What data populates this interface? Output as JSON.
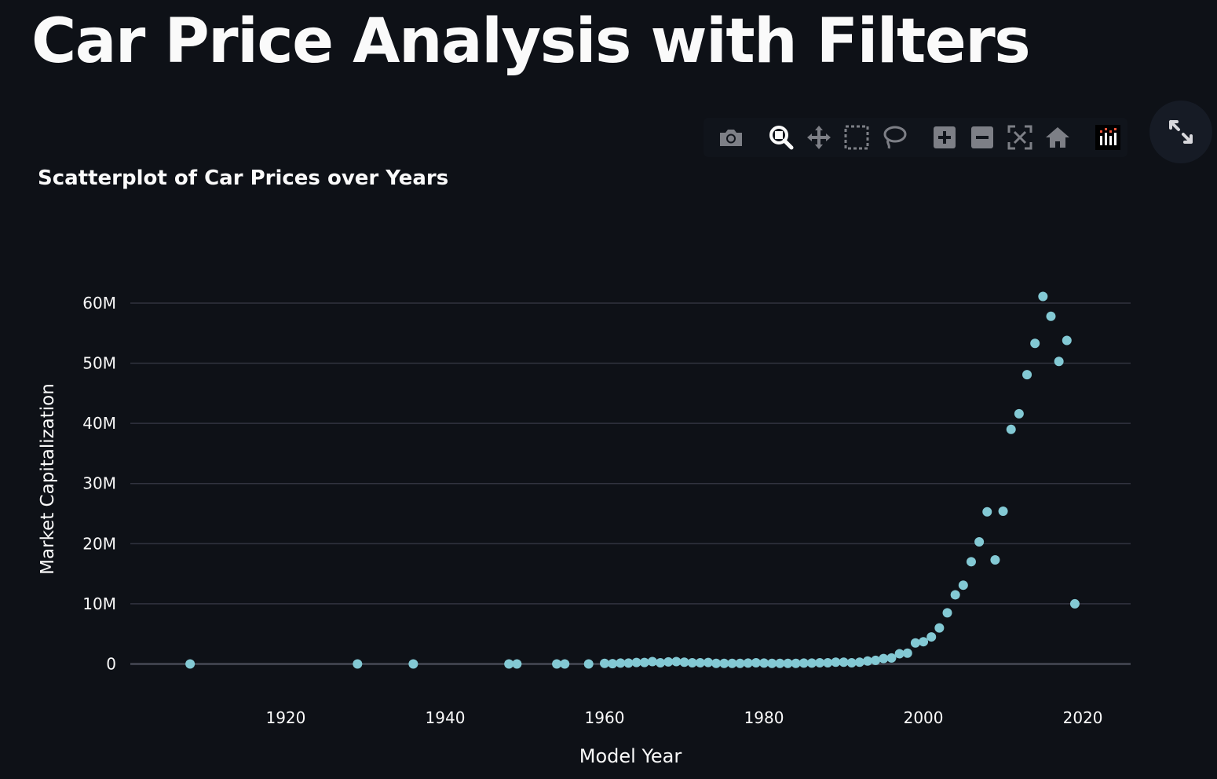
{
  "page": {
    "title": "Car Price Analysis with Filters"
  },
  "modebar": {
    "buttons": [
      {
        "name": "camera-icon",
        "label": "Download plot as a png"
      },
      {
        "name": "zoom-icon",
        "label": "Zoom"
      },
      {
        "name": "pan-icon",
        "label": "Pan"
      },
      {
        "name": "box-select-icon",
        "label": "Box Select"
      },
      {
        "name": "lasso-select-icon",
        "label": "Lasso Select"
      },
      {
        "name": "zoom-in-icon",
        "label": "Zoom in"
      },
      {
        "name": "zoom-out-icon",
        "label": "Zoom out"
      },
      {
        "name": "autoscale-icon",
        "label": "Autoscale"
      },
      {
        "name": "reset-axes-icon",
        "label": "Reset axes"
      },
      {
        "name": "plotly-logo-icon",
        "label": "Produced with Plotly"
      }
    ],
    "active": "zoom-icon"
  },
  "fullscreen": {
    "icon": "expand-icon"
  },
  "colors": {
    "background": "#0e1117",
    "marker": "#83c9d4",
    "grid": "#31333f",
    "text": "#fafafa"
  },
  "chart_data": {
    "type": "scatter",
    "title": "Scatterplot of Car Prices over Years",
    "xlabel": "Model Year",
    "ylabel": "Market Capitalization",
    "xlim": [
      1900.5,
      2026
    ],
    "ylim": [
      -4500000,
      66000000
    ],
    "xticks": [
      1920,
      1940,
      1960,
      1980,
      2000,
      2020
    ],
    "xtick_labels": [
      "1920",
      "1940",
      "1960",
      "1980",
      "2000",
      "2020"
    ],
    "yticks": [
      0,
      10000000,
      20000000,
      30000000,
      40000000,
      50000000,
      60000000
    ],
    "ytick_labels": [
      "0",
      "10M",
      "20M",
      "30M",
      "40M",
      "50M",
      "60M"
    ],
    "grid": true,
    "legend": "none",
    "points": [
      [
        1908,
        0
      ],
      [
        1929,
        0
      ],
      [
        1936,
        0
      ],
      [
        1948,
        0
      ],
      [
        1949,
        0
      ],
      [
        1954,
        0
      ],
      [
        1955,
        0
      ],
      [
        1958,
        0
      ],
      [
        1960,
        100000
      ],
      [
        1961,
        50000
      ],
      [
        1962,
        150000
      ],
      [
        1963,
        150000
      ],
      [
        1964,
        250000
      ],
      [
        1965,
        250000
      ],
      [
        1966,
        400000
      ],
      [
        1967,
        200000
      ],
      [
        1968,
        350000
      ],
      [
        1969,
        400000
      ],
      [
        1970,
        300000
      ],
      [
        1971,
        200000
      ],
      [
        1972,
        200000
      ],
      [
        1973,
        250000
      ],
      [
        1974,
        100000
      ],
      [
        1975,
        100000
      ],
      [
        1976,
        100000
      ],
      [
        1977,
        100000
      ],
      [
        1978,
        150000
      ],
      [
        1979,
        200000
      ],
      [
        1980,
        150000
      ],
      [
        1981,
        100000
      ],
      [
        1982,
        100000
      ],
      [
        1983,
        100000
      ],
      [
        1984,
        100000
      ],
      [
        1985,
        150000
      ],
      [
        1986,
        150000
      ],
      [
        1987,
        200000
      ],
      [
        1988,
        200000
      ],
      [
        1989,
        300000
      ],
      [
        1990,
        300000
      ],
      [
        1991,
        200000
      ],
      [
        1992,
        300000
      ],
      [
        1993,
        500000
      ],
      [
        1994,
        600000
      ],
      [
        1995,
        900000
      ],
      [
        1996,
        1000000
      ],
      [
        1997,
        1700000
      ],
      [
        1998,
        1800000
      ],
      [
        1999,
        3500000
      ],
      [
        2000,
        3700000
      ],
      [
        2001,
        4500000
      ],
      [
        2002,
        6000000
      ],
      [
        2003,
        8500000
      ],
      [
        2004,
        11500000
      ],
      [
        2005,
        13100000
      ],
      [
        2006,
        17000000
      ],
      [
        2007,
        20300000
      ],
      [
        2008,
        25300000
      ],
      [
        2009,
        17300000
      ],
      [
        2010,
        25400000
      ],
      [
        2011,
        39000000
      ],
      [
        2012,
        41600000
      ],
      [
        2013,
        48100000
      ],
      [
        2014,
        53300000
      ],
      [
        2015,
        61100000
      ],
      [
        2016,
        57800000
      ],
      [
        2017,
        50300000
      ],
      [
        2018,
        53800000
      ],
      [
        2019,
        10000000
      ]
    ]
  }
}
